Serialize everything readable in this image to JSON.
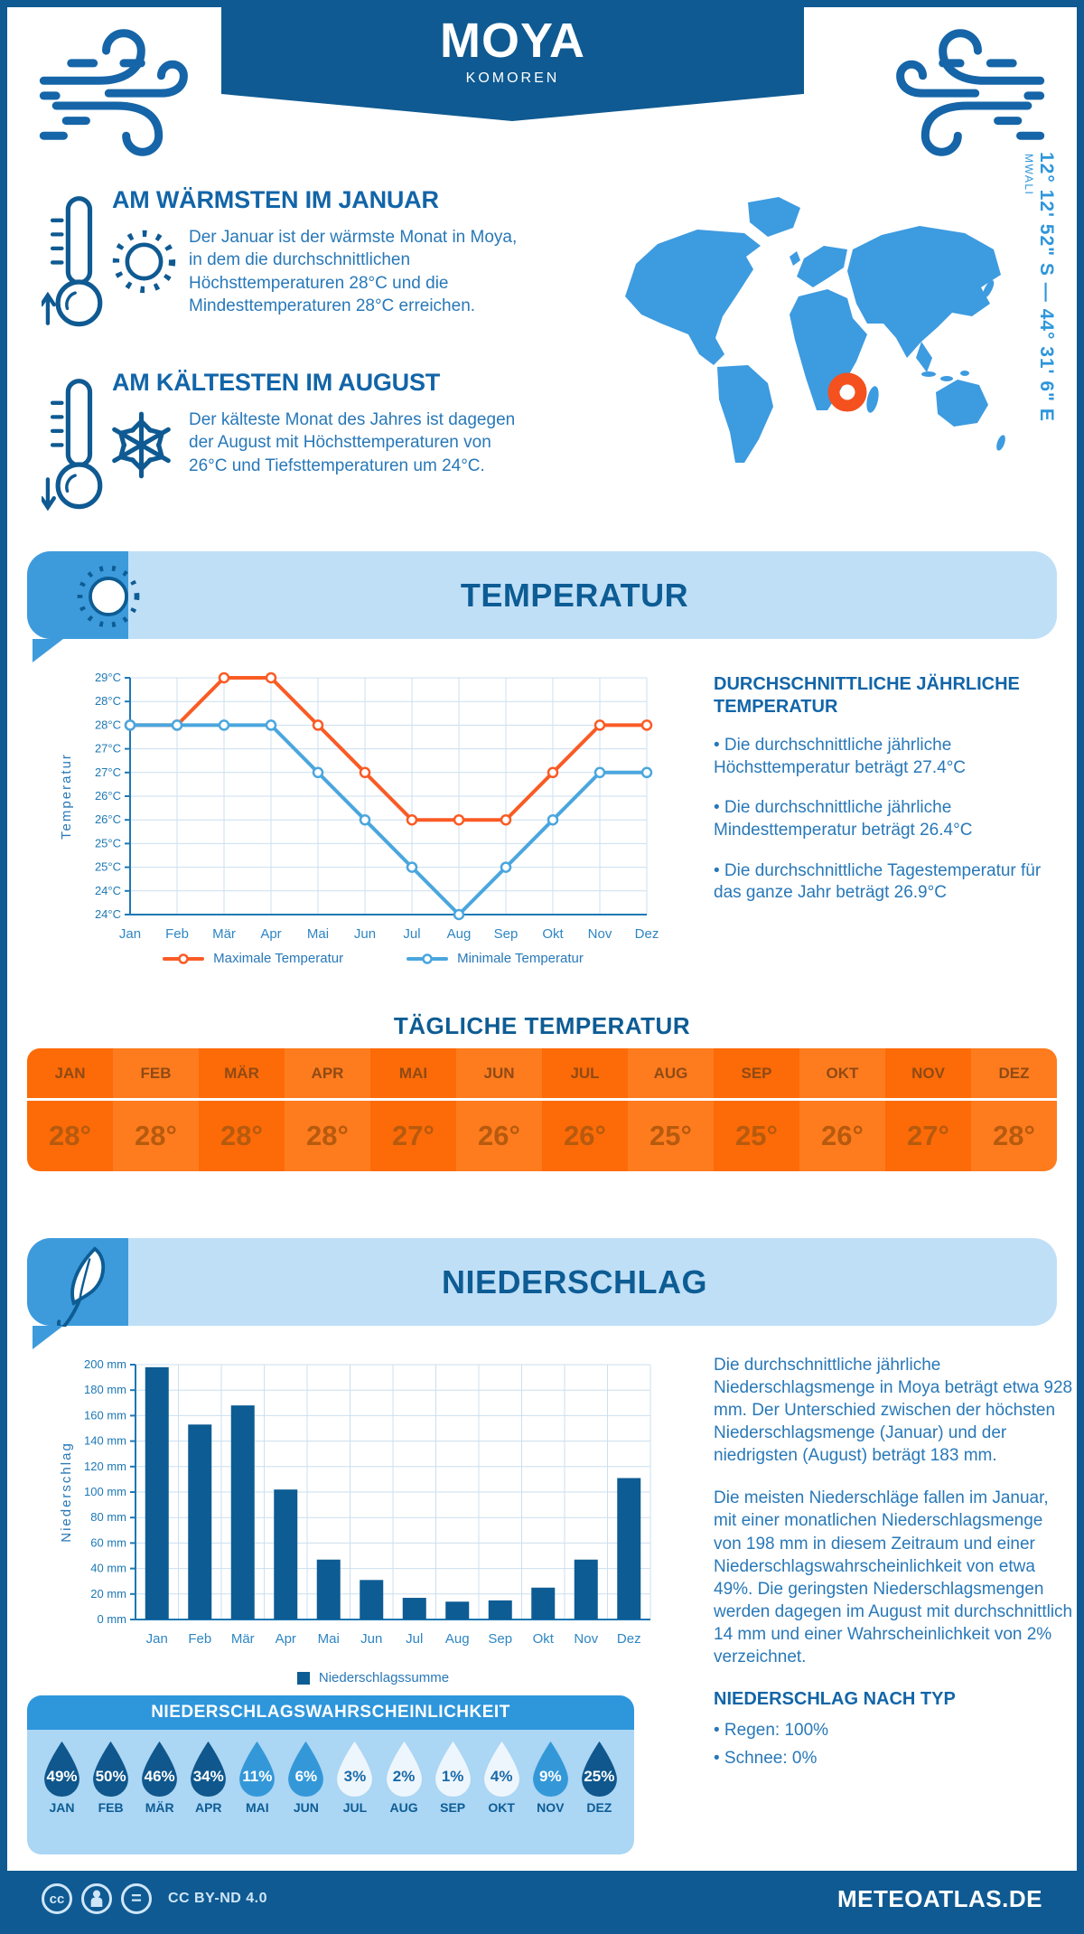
{
  "meta": {
    "title": "MOYA",
    "subtitle": "KOMOREN"
  },
  "location": {
    "coordinates": "12° 12' 52\" S — 44° 31' 6\" E",
    "island": "MWALI"
  },
  "intro": {
    "warm": {
      "heading": "AM WÄRMSTEN IM JANUAR",
      "text": "Der Januar ist der wärmste Monat in Moya, in dem die durchschnittlichen Höchsttemperaturen 28°C und die Mindesttemperaturen 28°C erreichen."
    },
    "cold": {
      "heading": "AM KÄLTESTEN IM AUGUST",
      "text": "Der kälteste Monat des Jahres ist dagegen der August mit Höchsttemperaturen von 26°C und Tiefsttemperaturen um 24°C."
    }
  },
  "sections": {
    "temperature": "TEMPERATUR",
    "precipitation": "NIEDERSCHLAG",
    "daily_temperature": "TÄGLICHE TEMPERATUR",
    "precip_probability": "NIEDERSCHLAGSWAHRSCHEINLICHKEIT",
    "precip_by_type": "NIEDERSCHLAG NACH TYP"
  },
  "annual_temperature": {
    "heading": "DURCHSCHNITTLICHE JÄHRLICHE TEMPERATUR",
    "bullets": [
      "• Die durchschnittliche jährliche Höchsttemperatur beträgt 27.4°C",
      "• Die durchschnittliche jährliche Mindesttemperatur beträgt 26.4°C",
      "• Die durchschnittliche Tagestemperatur für das ganze Jahr beträgt 26.9°C"
    ]
  },
  "precip_text": {
    "p1": "Die durchschnittliche jährliche Niederschlagsmenge in Moya beträgt etwa 928 mm. Der Unterschied zwischen der höchsten Niederschlagsmenge (Januar) und der niedrigsten (August) beträgt 183 mm.",
    "p2": "Die meisten Niederschläge fallen im Januar, mit einer monatlichen Niederschlagsmenge von 198 mm in diesem Zeitraum und einer Niederschlagswahrscheinlichkeit von etwa 49%. Die geringsten Niederschlagsmengen werden dagegen im August mit durchschnittlich 14 mm und einer Wahrscheinlichkeit von 2% verzeichnet.",
    "type_bullets": [
      "• Regen: 100%",
      "• Schnee: 0%"
    ]
  },
  "footer": {
    "license": "CC BY-ND 4.0",
    "site": "METEOATLAS.DE"
  },
  "colors": {
    "primary_dark_blue": "#0f5a92",
    "accent_blue": "#3d9bdc",
    "light_blue_bg": "#bfdff7",
    "pale_blue_bg": "#abd6f4",
    "heading_blue": "#1265a8",
    "body_blue": "#2878b8",
    "axis_text": "#1d78b5",
    "grid": "#ccdfef",
    "max_line": "#f95b25",
    "min_line": "#4aa6de",
    "bar_blue": "#0d5c94",
    "table_orange_a": "#fc6b08",
    "table_orange_b": "#ff7c1e",
    "map_blue": "#3d9be0",
    "marker_orange": "#f4511e",
    "drop_dark": "#0f578c",
    "drop_medium": "#3498d8",
    "drop_light": "#eef6fd",
    "drop_light_text": "#1a6aa8"
  },
  "chart_data": [
    {
      "id": "temperature_lines",
      "type": "line",
      "ylabel": "Temperatur",
      "categories": [
        "Jan",
        "Feb",
        "Mär",
        "Apr",
        "Mai",
        "Jun",
        "Jul",
        "Aug",
        "Sep",
        "Okt",
        "Nov",
        "Dez"
      ],
      "series": [
        {
          "name": "Maximale Temperatur",
          "color": "#f95b25",
          "values": [
            28,
            28,
            29,
            29,
            28,
            27,
            26,
            26,
            26,
            27,
            28,
            28
          ]
        },
        {
          "name": "Minimale Temperatur",
          "color": "#4aa6de",
          "values": [
            28,
            28,
            28,
            28,
            27,
            26,
            25,
            24,
            25,
            26,
            27,
            27
          ]
        }
      ],
      "ylim": [
        24,
        29
      ],
      "ytick_step": 0.5,
      "ytick_unit": "°C",
      "grid": true,
      "legend_position": "bottom"
    },
    {
      "id": "precipitation_bars",
      "type": "bar",
      "ylabel": "Niederschlag",
      "categories": [
        "Jan",
        "Feb",
        "Mär",
        "Apr",
        "Mai",
        "Jun",
        "Jul",
        "Aug",
        "Sep",
        "Okt",
        "Nov",
        "Dez"
      ],
      "values": [
        198,
        153,
        168,
        102,
        47,
        31,
        17,
        14,
        15,
        25,
        47,
        111
      ],
      "unit": "mm",
      "ylim": [
        0,
        200
      ],
      "ytick_step": 20,
      "grid": true,
      "legend": [
        "Niederschlagssumme"
      ],
      "legend_position": "bottom"
    },
    {
      "id": "precip_probability",
      "type": "pictogram",
      "categories": [
        "JAN",
        "FEB",
        "MÄR",
        "APR",
        "MAI",
        "JUN",
        "JUL",
        "AUG",
        "SEP",
        "OKT",
        "NOV",
        "DEZ"
      ],
      "values": [
        49,
        50,
        46,
        34,
        11,
        6,
        3,
        2,
        1,
        4,
        9,
        25
      ],
      "unit": "%"
    },
    {
      "id": "daily_temperature",
      "type": "table",
      "columns": [
        "JAN",
        "FEB",
        "MÄR",
        "APR",
        "MAI",
        "JUN",
        "JUL",
        "AUG",
        "SEP",
        "OKT",
        "NOV",
        "DEZ"
      ],
      "values": [
        "28°",
        "28°",
        "28°",
        "28°",
        "27°",
        "26°",
        "26°",
        "25°",
        "25°",
        "26°",
        "27°",
        "28°"
      ]
    }
  ]
}
